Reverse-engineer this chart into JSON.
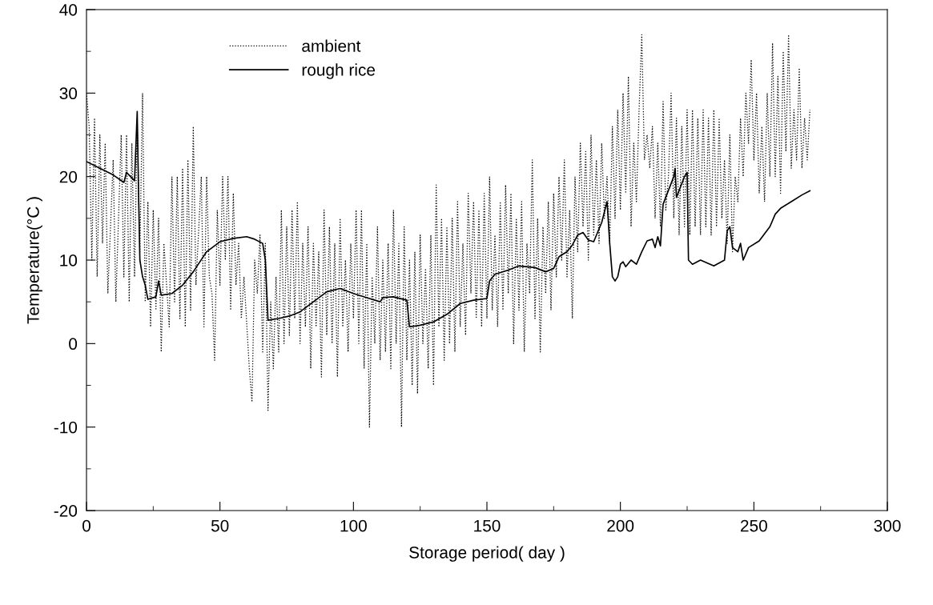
{
  "chart_data": {
    "type": "line",
    "xlabel": "Storage period( day )",
    "ylabel": "Temperature(°C )",
    "xlim": [
      0,
      300
    ],
    "xticks": [
      0,
      50,
      100,
      150,
      200,
      250,
      300
    ],
    "ylim": [
      -20,
      40
    ],
    "yticks": [
      -20,
      -10,
      0,
      10,
      20,
      30,
      40
    ],
    "grid": false,
    "legend": "top left",
    "series": [
      {
        "name": "ambient",
        "color": "#000000",
        "line_style": "dotted",
        "x": [
          0,
          1,
          2,
          3,
          4,
          5,
          6,
          7,
          8,
          10,
          11,
          13,
          14,
          15,
          16,
          17,
          18,
          19,
          20,
          21,
          22,
          23,
          24,
          25,
          26,
          27,
          28,
          29,
          31,
          32,
          33,
          34,
          35,
          36,
          37,
          38,
          39,
          40,
          41,
          43,
          44,
          45,
          46,
          47,
          48,
          49,
          50,
          51,
          52,
          53,
          54,
          55,
          56,
          57,
          58,
          59,
          61,
          62,
          63,
          64,
          65,
          66,
          67,
          68,
          69,
          70,
          71,
          72,
          73,
          74,
          75,
          76,
          77,
          78,
          79,
          80,
          81,
          82,
          83,
          84,
          85,
          86,
          87,
          88,
          89,
          90,
          91,
          92,
          93,
          94,
          95,
          96,
          97,
          98,
          99,
          100,
          101,
          102,
          103,
          104,
          105,
          106,
          107,
          108,
          109,
          110,
          111,
          112,
          113,
          114,
          115,
          116,
          117,
          118,
          119,
          120,
          121,
          122,
          123,
          124,
          125,
          126,
          127,
          128,
          129,
          130,
          131,
          132,
          133,
          134,
          135,
          136,
          137,
          138,
          139,
          140,
          141,
          142,
          143,
          144,
          145,
          146,
          147,
          148,
          149,
          150,
          151,
          152,
          153,
          154,
          155,
          156,
          157,
          158,
          159,
          160,
          161,
          162,
          163,
          164,
          165,
          166,
          167,
          168,
          169,
          170,
          171,
          172,
          173,
          174,
          175,
          176,
          177,
          178,
          179,
          180,
          181,
          182,
          183,
          184,
          185,
          186,
          187,
          188,
          189,
          190,
          191,
          192,
          193,
          194,
          195,
          196,
          197,
          198,
          199,
          200,
          201,
          202,
          203,
          204,
          205,
          206,
          207,
          208,
          209,
          210,
          211,
          212,
          213,
          214,
          215,
          216,
          217,
          218,
          219,
          220,
          221,
          222,
          223,
          224,
          225,
          226,
          227,
          228,
          229,
          230,
          231,
          232,
          233,
          234,
          235,
          236,
          237,
          238,
          239,
          240,
          241,
          242,
          243,
          244,
          245,
          246,
          247,
          248,
          249,
          250,
          251,
          252,
          253,
          254,
          255,
          256,
          257,
          258,
          259,
          260,
          261,
          262,
          263,
          264,
          265,
          266,
          267,
          268,
          269,
          270,
          271
        ],
        "values": [
          30,
          26,
          10,
          27,
          8,
          25,
          12,
          24,
          6,
          22,
          5,
          25,
          8,
          25,
          5,
          24,
          8,
          27,
          11,
          30,
          5,
          17,
          2,
          16,
          4,
          15,
          -1,
          12,
          2,
          20,
          5,
          20,
          3,
          21,
          2,
          22,
          4,
          26,
          7,
          20,
          2,
          20,
          8,
          6,
          -2,
          16,
          7,
          20,
          10,
          20,
          4,
          18,
          7,
          12,
          3,
          8,
          -3,
          -7,
          10,
          6,
          13,
          -1,
          12,
          -8,
          5,
          -3,
          8,
          -1,
          16,
          0,
          14,
          1,
          16,
          3,
          17,
          0,
          12,
          2,
          14,
          -3,
          12,
          2,
          11,
          -4,
          16,
          1,
          14,
          0,
          12,
          -4,
          15,
          2,
          10,
          -1,
          12,
          3,
          16,
          0,
          16,
          -3,
          12,
          -10,
          8,
          0,
          14,
          -2,
          10,
          -1,
          12,
          -3,
          16,
          0,
          12,
          -10,
          14,
          -2,
          10,
          -5,
          11,
          -6,
          13,
          0,
          9,
          -3,
          13,
          -5,
          19,
          2,
          15,
          -2,
          14,
          0,
          15,
          -1,
          17,
          2,
          12,
          1,
          18,
          6,
          17,
          3,
          16,
          2,
          18,
          3,
          20,
          4,
          13,
          2,
          17,
          4,
          19,
          6,
          18,
          0,
          15,
          4,
          17,
          -1,
          12,
          6,
          22,
          3,
          15,
          -1,
          14,
          6,
          17,
          4,
          18,
          8,
          20,
          10,
          22,
          8,
          16,
          3,
          20,
          11,
          24,
          14,
          23,
          10,
          25,
          13,
          22,
          12,
          24,
          15,
          20,
          12,
          26,
          15,
          28,
          16,
          30,
          18,
          32,
          14,
          24,
          17,
          28,
          37,
          22,
          25,
          21,
          26,
          15,
          24,
          14,
          29,
          16,
          20,
          30,
          15,
          27,
          13,
          26,
          14,
          28,
          13,
          28,
          14,
          27,
          13,
          28,
          14,
          27,
          13,
          28,
          14,
          27,
          15,
          22,
          12,
          25,
          11,
          20,
          17,
          27,
          20,
          30,
          24,
          34,
          22,
          30,
          18,
          26,
          17,
          30,
          20,
          36,
          20,
          32,
          18,
          35,
          23,
          37,
          21,
          28,
          22,
          33,
          21,
          27,
          22,
          28
        ]
      },
      {
        "name": "rough rice",
        "color": "#000000",
        "line_style": "solid",
        "x": [
          0,
          5,
          10,
          14,
          15,
          18,
          19,
          19.5,
          20,
          21,
          22,
          23,
          26,
          27,
          28,
          32,
          36,
          40,
          45,
          50,
          55,
          60,
          63,
          66,
          67,
          68,
          72,
          76,
          80,
          85,
          90,
          95,
          100,
          105,
          110,
          111,
          115,
          120,
          121,
          125,
          130,
          135,
          140,
          145,
          150,
          151,
          153,
          158,
          162,
          168,
          172,
          175,
          177,
          180,
          182,
          184,
          186,
          188,
          190,
          193,
          195,
          196,
          197,
          198,
          199,
          200,
          201,
          202,
          204,
          206,
          208,
          210,
          212,
          213,
          214,
          215,
          216,
          220,
          220.5,
          221,
          224,
          225,
          225.5,
          227,
          230,
          235,
          239,
          240,
          241,
          242,
          244,
          245,
          246,
          248,
          252,
          256,
          258,
          260,
          264,
          268,
          271
        ],
        "values": [
          21.8,
          21,
          20.2,
          19.3,
          20.5,
          19.5,
          27.8,
          18,
          10,
          8,
          7,
          5.3,
          5.6,
          7.5,
          5.8,
          6,
          7,
          8.6,
          11,
          12.2,
          12.6,
          12.8,
          12.5,
          12,
          10,
          2.8,
          3,
          3.3,
          3.8,
          5,
          6.2,
          6.6,
          6,
          5.5,
          5,
          5.5,
          5.6,
          5.2,
          2,
          2.2,
          2.6,
          3.5,
          4.8,
          5.2,
          5.4,
          7.5,
          8.3,
          8.8,
          9.3,
          9.1,
          8.6,
          9,
          10.4,
          11,
          11.8,
          13,
          13.3,
          12.4,
          12.2,
          14.5,
          17,
          12,
          8,
          7.5,
          8,
          9.5,
          9.8,
          9.2,
          10,
          9.5,
          11,
          12.3,
          12.5,
          11.5,
          12.8,
          11.7,
          16.7,
          20,
          21,
          17.5,
          20,
          20.5,
          10,
          9.5,
          10,
          9.3,
          10,
          13.5,
          14,
          11.5,
          11,
          12,
          10,
          11.5,
          12.3,
          14,
          15.5,
          16.2,
          17,
          17.8,
          18.3
        ]
      }
    ]
  }
}
